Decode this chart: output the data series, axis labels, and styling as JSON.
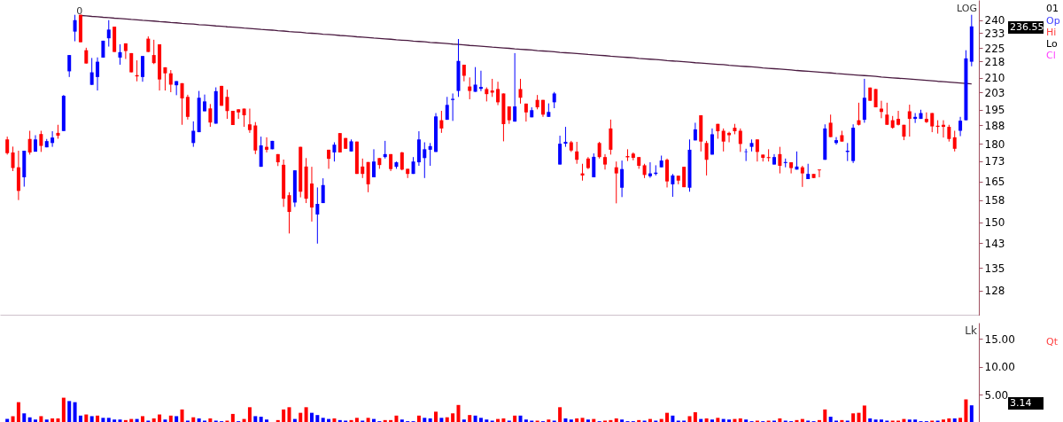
{
  "chart_data": [
    {
      "type": "candlestick",
      "log": true,
      "tick_labels": "y",
      "ylim": [
        120.8,
        251.5
      ],
      "yticks": [
        128,
        135,
        143,
        150,
        158,
        165,
        173,
        180,
        188,
        195,
        203,
        210,
        218,
        225,
        233,
        240
      ],
      "categories": [
        null,
        null,
        null,
        null,
        null,
        null,
        null,
        null,
        null,
        null,
        null,
        null,
        null,
        null,
        null,
        null,
        null,
        null,
        null,
        null,
        null,
        null,
        null,
        null,
        null,
        null,
        null,
        null,
        null,
        null,
        null,
        null,
        null,
        null,
        null,
        null,
        null,
        null,
        null,
        null,
        null,
        null,
        null,
        null,
        null,
        null,
        null,
        null,
        null,
        null,
        null,
        null,
        null,
        null,
        null,
        null,
        null,
        null,
        null,
        null,
        null,
        null,
        null,
        null,
        null,
        null,
        null,
        null,
        null,
        null,
        null,
        null,
        null,
        null,
        null,
        null,
        null,
        null,
        null,
        null,
        null,
        null,
        null,
        null,
        null,
        null,
        null,
        null,
        null,
        null,
        null,
        null,
        null,
        null,
        null,
        null,
        null,
        null,
        null,
        null,
        null,
        null,
        null,
        null,
        null,
        null,
        null,
        null,
        null,
        null,
        null,
        null,
        null,
        null,
        null,
        null,
        null,
        null,
        null,
        null,
        null,
        null,
        null,
        null,
        null,
        null,
        null,
        null,
        null,
        null,
        null,
        null,
        null,
        null,
        null,
        null,
        null,
        null,
        null,
        null,
        null,
        null,
        null,
        null,
        null,
        null,
        null,
        null,
        null,
        null,
        null,
        null,
        null,
        null,
        null,
        null,
        null,
        null,
        null,
        null,
        null,
        null,
        null,
        null,
        null,
        null,
        null,
        null,
        null,
        null,
        null,
        null
      ],
      "ohlc": [
        [
          181.9,
          183.1,
          175.6,
          176.2
        ],
        [
          176.5,
          178.9,
          169.0,
          170.2
        ],
        [
          170.5,
          177.2,
          158.0,
          161.4
        ],
        [
          166.6,
          177.2,
          163.0,
          177.2
        ],
        [
          182.1,
          185.6,
          175.6,
          176.5
        ],
        [
          176.8,
          183.7,
          176.8,
          181.9
        ],
        [
          184.2,
          185.6,
          176.7,
          179.2
        ],
        [
          178.6,
          182.1,
          178.6,
          181.2
        ],
        [
          180.4,
          185.4,
          178.8,
          182.7
        ],
        [
          184.7,
          188.2,
          182.2,
          183.5
        ],
        [
          185.5,
          201.7,
          185.5,
          201.3
        ],
        [
          213.1,
          221.3,
          210.3,
          221.3
        ],
        [
          233.7,
          243.0,
          228.5,
          240.0
        ],
        [
          243.0,
          243.0,
          228.0,
          228.0
        ],
        [
          223.8,
          225.1,
          217.0,
          217.0
        ],
        [
          206.5,
          219.8,
          206.5,
          212.6
        ],
        [
          210.3,
          220.1,
          203.8,
          217.9
        ],
        [
          220.0,
          228.8,
          220.0,
          228.8
        ],
        [
          230.1,
          240.0,
          225.7,
          234.8
        ],
        [
          236.4,
          236.4,
          222.9,
          222.9
        ],
        [
          220.0,
          226.9,
          216.4,
          222.8
        ],
        [
          227.4,
          227.4,
          219.3,
          223.4
        ],
        [
          222.3,
          222.3,
          212.6,
          212.6
        ],
        [
          211.2,
          218.6,
          208.2,
          210.6
        ],
        [
          210.3,
          220.8,
          208.0,
          220.8
        ],
        [
          229.9,
          231.1,
          222.9,
          222.9
        ],
        [
          221.3,
          229.3,
          216.7,
          217.2
        ],
        [
          226.9,
          226.9,
          203.8,
          209.1
        ],
        [
          215.1,
          215.1,
          203.8,
          212.1
        ],
        [
          212.1,
          213.7,
          203.0,
          206.6
        ],
        [
          206.3,
          208.3,
          201.6,
          208.3
        ],
        [
          207.3,
          207.3,
          188.2,
          200.1
        ],
        [
          200.8,
          201.8,
          190.5,
          191.7
        ],
        [
          180.4,
          189.7,
          178.8,
          185.6
        ],
        [
          185.0,
          203.6,
          185.0,
          200.4
        ],
        [
          194.2,
          201.9,
          194.2,
          198.7
        ],
        [
          195.5,
          197.5,
          187.3,
          189.2
        ],
        [
          188.7,
          205.3,
          188.7,
          203.5
        ],
        [
          206.0,
          206.0,
          196.7,
          196.7
        ],
        [
          200.8,
          204.2,
          190.8,
          194.3
        ],
        [
          194.4,
          194.4,
          188.1,
          188.1
        ],
        [
          195.1,
          195.1,
          190.8,
          193.7
        ],
        [
          195.4,
          195.4,
          187.3,
          192.4
        ],
        [
          188.4,
          195.4,
          184.7,
          185.9
        ],
        [
          187.9,
          189.4,
          175.8,
          177.3
        ],
        [
          170.7,
          183.1,
          170.7,
          179.4
        ],
        [
          178.8,
          182.8,
          176.5,
          177.6
        ],
        [
          177.8,
          181.3,
          177.8,
          181.3
        ],
        [
          175.8,
          175.8,
          171.0,
          172.5
        ],
        [
          171.5,
          173.6,
          155.5,
          158.5
        ],
        [
          159.8,
          160.9,
          146.2,
          153.7
        ],
        [
          157.1,
          169.3,
          155.5,
          169.3
        ],
        [
          178.8,
          178.8,
          159.0,
          161.1
        ],
        [
          170.8,
          174.2,
          156.9,
          158.5
        ],
        [
          164.2,
          170.7,
          150.3,
          155.3
        ],
        [
          152.8,
          162.7,
          142.8,
          156.6
        ],
        [
          156.9,
          166.2,
          156.9,
          163.6
        ],
        [
          177.6,
          177.6,
          169.9,
          173.9
        ],
        [
          176.5,
          180.7,
          172.8,
          179.7
        ],
        [
          184.6,
          184.6,
          176.5,
          176.5
        ],
        [
          182.5,
          182.5,
          178.0,
          178.0
        ],
        [
          176.9,
          181.9,
          176.9,
          181.1
        ],
        [
          181.0,
          181.0,
          167.9,
          167.9
        ],
        [
          170.8,
          174.0,
          166.3,
          167.9
        ],
        [
          172.6,
          172.6,
          160.9,
          163.9
        ],
        [
          166.6,
          177.8,
          166.6,
          172.8
        ],
        [
          174.2,
          174.2,
          169.9,
          171.4
        ],
        [
          174.6,
          181.3,
          174.0,
          175.8
        ],
        [
          175.8,
          175.8,
          169.0,
          169.8
        ],
        [
          170.7,
          172.8,
          169.9,
          172.5
        ],
        [
          176.5,
          176.7,
          169.3,
          169.6
        ],
        [
          169.9,
          169.9,
          166.3,
          167.9
        ],
        [
          167.9,
          174.6,
          167.9,
          172.8
        ],
        [
          172.5,
          185.4,
          171.1,
          181.9
        ],
        [
          174.2,
          180.7,
          166.3,
          177.8
        ],
        [
          177.6,
          180.4,
          171.1,
          179.1
        ],
        [
          176.7,
          193.4,
          176.7,
          191.9
        ],
        [
          190.2,
          194.4,
          184.7,
          186.6
        ],
        [
          190.4,
          200.8,
          190.4,
          197.1
        ],
        [
          199.4,
          202.4,
          189.9,
          199.9
        ],
        [
          203.6,
          229.7,
          200.8,
          218.3
        ],
        [
          216.4,
          216.4,
          208.2,
          210.9
        ],
        [
          205.7,
          210.1,
          199.7,
          203.6
        ],
        [
          203.2,
          215.2,
          203.2,
          206.6
        ],
        [
          204.6,
          213.4,
          203.5,
          205.5
        ],
        [
          204.5,
          205.3,
          198.7,
          202.1
        ],
        [
          203.8,
          209.4,
          200.8,
          202.8
        ],
        [
          204.5,
          208.0,
          197.0,
          198.3
        ],
        [
          202.4,
          202.4,
          181.1,
          188.5
        ],
        [
          196.4,
          196.4,
          188.6,
          190.2
        ],
        [
          189.6,
          222.3,
          189.6,
          196.4
        ],
        [
          204.5,
          209.4,
          197.7,
          200.4
        ],
        [
          197.7,
          197.7,
          189.6,
          193.7
        ],
        [
          191.5,
          196.0,
          191.5,
          194.7
        ],
        [
          199.4,
          201.7,
          195.1,
          196.0
        ],
        [
          199.4,
          199.4,
          191.7,
          192.7
        ],
        [
          191.7,
          197.8,
          191.7,
          193.9
        ],
        [
          198.3,
          203.1,
          195.6,
          202.4
        ],
        [
          171.6,
          183.5,
          171.6,
          180.1
        ],
        [
          180.1,
          187.3,
          178.8,
          180.9
        ],
        [
          180.7,
          181.3,
          176.7,
          177.3
        ],
        [
          176.9,
          180.9,
          171.9,
          173.5
        ],
        [
          168.1,
          171.9,
          165.3,
          167.3
        ],
        [
          174.0,
          174.6,
          169.8,
          170.2
        ],
        [
          166.6,
          176.1,
          166.6,
          174.7
        ],
        [
          180.4,
          180.9,
          174.0,
          174.6
        ],
        [
          174.6,
          175.8,
          169.6,
          171.6
        ],
        [
          186.6,
          190.5,
          175.6,
          177.6
        ],
        [
          170.5,
          172.8,
          156.8,
          168.1
        ],
        [
          162.6,
          173.2,
          159.1,
          169.8
        ],
        [
          175.0,
          177.8,
          173.0,
          174.5
        ],
        [
          176.0,
          176.5,
          173.3,
          174.3
        ],
        [
          174.6,
          174.6,
          169.9,
          171.1
        ],
        [
          171.3,
          171.9,
          166.3,
          167.5
        ],
        [
          167.0,
          172.5,
          166.4,
          168.1
        ],
        [
          167.9,
          171.3,
          167.3,
          168.4
        ],
        [
          170.5,
          175.2,
          170.5,
          173.2
        ],
        [
          173.5,
          174.0,
          162.7,
          165.0
        ],
        [
          163.9,
          167.9,
          159.2,
          167.3
        ],
        [
          167.2,
          167.2,
          163.9,
          165.3
        ],
        [
          170.7,
          170.7,
          162.8,
          162.8
        ],
        [
          162.6,
          181.9,
          161.1,
          177.6
        ],
        [
          181.5,
          189.1,
          181.5,
          186.2
        ],
        [
          192.4,
          192.4,
          176.9,
          181.0
        ],
        [
          180.4,
          181.3,
          167.3,
          173.5
        ],
        [
          175.6,
          186.6,
          175.6,
          184.1
        ],
        [
          188.6,
          188.6,
          182.2,
          185.4
        ],
        [
          185.6,
          186.6,
          176.9,
          181.0
        ],
        [
          184.7,
          185.2,
          180.7,
          183.7
        ],
        [
          186.9,
          188.6,
          184.1,
          185.4
        ],
        [
          185.6,
          186.6,
          176.7,
          180.0
        ],
        [
          176.7,
          178.0,
          173.0,
          176.9
        ],
        [
          178.8,
          181.9,
          176.9,
          180.4
        ],
        [
          181.9,
          181.9,
          172.8,
          176.7
        ],
        [
          175.6,
          175.6,
          172.8,
          174.3
        ],
        [
          174.6,
          177.8,
          172.8,
          174.2
        ],
        [
          171.6,
          175.8,
          171.6,
          174.6
        ],
        [
          175.8,
          178.8,
          168.1,
          171.1
        ],
        [
          172.2,
          174.0,
          170.5,
          172.6
        ],
        [
          172.5,
          172.5,
          168.1,
          170.2
        ],
        [
          169.6,
          176.9,
          169.6,
          170.8
        ],
        [
          170.5,
          171.1,
          162.9,
          168.1
        ],
        [
          165.9,
          171.9,
          165.9,
          167.9
        ],
        [
          167.9,
          167.9,
          166.3,
          166.3
        ],
        [
          169.6,
          169.6,
          166.6,
          169.3
        ],
        [
          173.5,
          188.4,
          173.5,
          186.6
        ],
        [
          189.1,
          192.7,
          182.9,
          182.9
        ],
        [
          180.4,
          182.9,
          179.7,
          181.6
        ],
        [
          183.7,
          185.6,
          181.0,
          181.0
        ],
        [
          176.7,
          180.4,
          173.0,
          177.2
        ],
        [
          173.0,
          188.4,
          172.2,
          186.9
        ],
        [
          190.2,
          198.1,
          187.9,
          188.2
        ],
        [
          190.4,
          209.4,
          189.1,
          200.4
        ],
        [
          205.2,
          205.2,
          199.0,
          199.0
        ],
        [
          204.5,
          204.5,
          196.0,
          196.0
        ],
        [
          195.4,
          199.0,
          191.1,
          193.9
        ],
        [
          192.7,
          198.1,
          188.2,
          188.2
        ],
        [
          190.2,
          192.1,
          186.5,
          186.9
        ],
        [
          190.8,
          194.4,
          187.9,
          188.2
        ],
        [
          188.2,
          188.2,
          181.6,
          183.1
        ],
        [
          194.2,
          197.2,
          183.1,
          190.8
        ],
        [
          190.8,
          193.4,
          189.0,
          191.7
        ],
        [
          190.8,
          194.9,
          190.8,
          193.4
        ],
        [
          190.8,
          193.7,
          189.0,
          189.4
        ],
        [
          193.4,
          193.4,
          185.0,
          187.5
        ],
        [
          187.8,
          190.2,
          184.4,
          187.3
        ],
        [
          188.2,
          190.2,
          182.7,
          187.3
        ],
        [
          187.3,
          188.2,
          181.0,
          182.1
        ],
        [
          182.8,
          185.6,
          176.9,
          178.0
        ],
        [
          185.6,
          191.7,
          183.3,
          190.0
        ],
        [
          190.2,
          223.8,
          190.2,
          219.6
        ],
        [
          217.9,
          243.0,
          215.6,
          236.55
        ]
      ],
      "colors": [
        "#ff0000",
        "#ff0000",
        "#ff0000",
        "#0000ff",
        "#ff0000",
        "#0000ff",
        "#ff0000",
        "#0000ff",
        "#0000ff",
        "#ff0000",
        "#0000ff",
        "#0000ff",
        "#0000ff",
        "#ff0000",
        "#ff0000",
        "#0000ff",
        "#0000ff",
        "#0000ff",
        "#0000ff",
        "#ff0000",
        "#0000ff",
        "#ff0000",
        "#ff0000",
        "#ff0000",
        "#0000ff",
        "#ff0000",
        "#ff0000",
        "#ff0000",
        "#ff0000",
        "#ff0000",
        "#0000ff",
        "#ff0000",
        "#ff0000",
        "#0000ff",
        "#0000ff",
        "#0000ff",
        "#ff0000",
        "#0000ff",
        "#ff0000",
        "#ff0000",
        "#ff0000",
        "#ff0000",
        "#ff0000",
        "#ff0000",
        "#ff0000",
        "#0000ff",
        "#ff0000",
        "#0000ff",
        "#ff0000",
        "#ff0000",
        "#ff0000",
        "#0000ff",
        "#ff0000",
        "#ff0000",
        "#ff0000",
        "#0000ff",
        "#0000ff",
        "#ff0000",
        "#0000ff",
        "#ff0000",
        "#ff0000",
        "#0000ff",
        "#ff0000",
        "#ff0000",
        "#ff0000",
        "#0000ff",
        "#ff0000",
        "#0000ff",
        "#ff0000",
        "#0000ff",
        "#ff0000",
        "#ff0000",
        "#0000ff",
        "#0000ff",
        "#0000ff",
        "#0000ff",
        "#0000ff",
        "#ff0000",
        "#0000ff",
        "#0000ff",
        "#0000ff",
        "#ff0000",
        "#ff0000",
        "#0000ff",
        "#0000ff",
        "#ff0000",
        "#ff0000",
        "#ff0000",
        "#ff0000",
        "#ff0000",
        "#0000ff",
        "#ff0000",
        "#ff0000",
        "#0000ff",
        "#ff0000",
        "#ff0000",
        "#0000ff",
        "#0000ff",
        "#0000ff",
        "#0000ff",
        "#ff0000",
        "#ff0000",
        "#ff0000",
        "#ff0000",
        "#0000ff",
        "#ff0000",
        "#ff0000",
        "#ff0000",
        "#ff0000",
        "#0000ff",
        "#ff0000",
        "#ff0000",
        "#ff0000",
        "#ff0000",
        "#0000ff",
        "#0000ff",
        "#0000ff",
        "#ff0000",
        "#0000ff",
        "#ff0000",
        "#ff0000",
        "#0000ff",
        "#0000ff",
        "#ff0000",
        "#ff0000",
        "#0000ff",
        "#ff0000",
        "#ff0000",
        "#ff0000",
        "#ff0000",
        "#ff0000",
        "#0000ff",
        "#0000ff",
        "#ff0000",
        "#ff0000",
        "#ff0000",
        "#0000ff",
        "#ff0000",
        "#0000ff",
        "#ff0000",
        "#0000ff",
        "#ff0000",
        "#0000ff",
        "#ff0000",
        "#ff0000",
        "#0000ff",
        "#ff0000",
        "#0000ff",
        "#ff0000",
        "#0000ff",
        "#0000ff",
        "#ff0000",
        "#0000ff",
        "#ff0000",
        "#ff0000",
        "#ff0000",
        "#ff0000",
        "#ff0000",
        "#ff0000",
        "#ff0000",
        "#ff0000",
        "#0000ff",
        "#0000ff",
        "#ff0000",
        "#ff0000",
        "#ff0000",
        "#ff0000",
        "#ff0000",
        "#ff0000",
        "#0000ff",
        "#0000ff",
        "#0000ff"
      ],
      "series": [
        {
          "type": "line",
          "color": "#4a1a40",
          "values": [
            null,
            null,
            null,
            null,
            null,
            null,
            null,
            null,
            null,
            null,
            null,
            null,
            null,
            242.6,
            242.4,
            242.1,
            241.9,
            241.6,
            241.4,
            241.1,
            240.9,
            240.7,
            240.4,
            240.2,
            239.9,
            239.7,
            239.5,
            239.2,
            239.0,
            238.7,
            238.5,
            238.2,
            238.0,
            237.8,
            237.5,
            237.3,
            237.1,
            236.8,
            236.6,
            236.3,
            236.1,
            235.9,
            235.6,
            235.4,
            235.2,
            234.9,
            234.7,
            234.5,
            234.2,
            234.0,
            233.7,
            233.5,
            233.3,
            233.0,
            232.8,
            232.6,
            232.3,
            232.1,
            231.9,
            231.6,
            231.4,
            231.2,
            230.9,
            230.7,
            230.5,
            230.2,
            230.0,
            229.8,
            229.6,
            229.3,
            229.1,
            228.9,
            228.6,
            228.4,
            228.2,
            227.9,
            227.7,
            227.5,
            227.3,
            227.0,
            226.8,
            226.6,
            226.3,
            226.1,
            225.9,
            225.7,
            225.4,
            225.2,
            225.0,
            224.8,
            224.5,
            224.3,
            224.1,
            223.9,
            223.6,
            223.4,
            223.2,
            223.0,
            222.7,
            222.5,
            222.3,
            222.1,
            221.9,
            221.6,
            221.4,
            221.2,
            221.0,
            220.7,
            220.5,
            220.3,
            220.1,
            219.9,
            219.6,
            219.4,
            219.2,
            219.0,
            218.8,
            218.5,
            218.3,
            218.1,
            217.9,
            217.7,
            217.4,
            217.2,
            217.0,
            216.8,
            216.6,
            216.4,
            216.1,
            215.9,
            215.7,
            215.5,
            215.3,
            215.1,
            214.8,
            214.6,
            214.4,
            214.2,
            214.0,
            213.8,
            213.5,
            213.3,
            213.1,
            212.9,
            212.7,
            212.5,
            212.3,
            212.0,
            211.8,
            211.6,
            211.4,
            211.2,
            211.0,
            210.8,
            210.6,
            210.3,
            210.1,
            209.9,
            209.7,
            209.5,
            209.3,
            209.1,
            208.9,
            208.7,
            208.5,
            208.2,
            208.0,
            207.8,
            207.6,
            207.4,
            207.2,
            207.0
          ]
        }
      ],
      "annotations": [
        "0",
        "LOG",
        "236.55",
        "01",
        "Op",
        "Hi",
        "Lo",
        "Cl"
      ]
    },
    {
      "type": "bar",
      "tick_labels": "y",
      "ylabel": "Lk",
      "ylim": [
        0,
        17.9
      ],
      "yticks": [
        {
          "value": 5,
          "label": "5.00"
        },
        {
          "value": 10,
          "label": "10.00"
        },
        {
          "value": 15,
          "label": "15.00"
        }
      ],
      "categories": [
        null,
        null,
        null,
        null,
        null,
        null,
        null,
        null,
        null,
        null,
        null,
        null,
        null,
        null,
        null,
        null,
        null,
        null,
        null,
        null,
        null,
        null,
        null,
        null,
        null,
        null,
        null,
        null,
        null,
        null,
        null,
        null,
        null,
        null,
        null,
        null,
        null,
        null,
        null,
        null,
        null,
        null,
        null,
        null,
        null,
        null,
        null,
        null,
        null,
        null,
        null,
        null,
        null,
        null,
        null,
        null,
        null,
        null,
        null,
        null,
        null,
        null,
        null,
        null,
        null,
        null,
        null,
        null,
        null,
        null,
        null,
        null,
        null,
        null,
        null,
        null,
        null,
        null,
        null,
        null,
        null,
        null,
        null,
        null,
        null,
        null,
        null,
        null,
        null,
        null,
        null,
        null,
        null,
        null,
        null,
        null,
        null,
        null,
        null,
        null,
        null,
        null,
        null,
        null,
        null,
        null,
        null,
        null,
        null,
        null,
        null,
        null,
        null,
        null,
        null,
        null,
        null,
        null,
        null,
        null,
        null,
        null,
        null,
        null,
        null,
        null,
        null,
        null,
        null,
        null,
        null,
        null,
        null,
        null,
        null,
        null,
        null,
        null,
        null,
        null,
        null,
        null,
        null,
        null,
        null,
        null,
        null,
        null,
        null,
        null,
        null,
        null,
        null,
        null,
        null,
        null,
        null,
        null,
        null,
        null,
        null,
        null,
        null,
        null,
        null,
        null,
        null,
        null,
        null,
        null,
        null,
        null
      ],
      "values": [
        0.7,
        1.2,
        3.7,
        1.7,
        1.0,
        0.6,
        1.2,
        0.6,
        0.8,
        0.8,
        4.5,
        3.9,
        3.7,
        1.3,
        1.5,
        1.2,
        1.3,
        0.9,
        0.9,
        0.6,
        0.6,
        0.5,
        0.7,
        0.7,
        1.2,
        0.4,
        0.8,
        1.5,
        0.6,
        1.3,
        1.2,
        2.4,
        0.4,
        1.0,
        0.8,
        0.4,
        0.8,
        0.4,
        0.3,
        0.4,
        1.6,
        0.3,
        0.7,
        2.8,
        1.2,
        1.1,
        0.6,
        null,
        0.5,
        2.4,
        2.8,
        0.7,
        1.8,
        2.8,
        1.8,
        1.4,
        0.9,
        0.7,
        0.8,
        0.5,
        0.4,
        0.5,
        0.9,
        0.4,
        0.9,
        0.7,
        0.3,
        0.5,
        0.5,
        1.3,
        0.6,
        0.3,
        0.3,
        1.3,
        0.9,
        0.8,
        2.0,
        0.9,
        1.0,
        1.7,
        3.2,
        0.6,
        1.4,
        1.3,
        0.9,
        0.6,
        0.4,
        0.7,
        0.8,
        0.4,
        1.3,
        1.3,
        0.6,
        0.4,
        0.4,
        0.3,
        0.6,
        0.4,
        2.8,
        0.8,
        0.6,
        0.8,
        0.9,
        0.6,
        0.7,
        0.3,
        0.4,
        0.5,
        0.8,
        0.6,
        0.3,
        0.3,
        0.5,
        0.4,
        0.7,
        0.4,
        0.7,
        1.8,
        1.3,
        0.4,
        0.4,
        1.2,
        1.9,
        0.7,
        0.8,
        0.6,
        0.9,
        0.7,
        0.6,
        0.7,
        0.8,
        0.6,
        0.3,
        0.4,
        0.3,
        0.4,
        0.4,
        0.8,
        0.4,
        0.3,
        0.5,
        0.7,
        0.4,
        0.3,
        0.5,
        2.4,
        1.1,
        0.4,
        0.5,
        0.4,
        1.7,
        1.8,
        3.1,
        0.8,
        0.6,
        0.6,
        0.4,
        0.4,
        0.4,
        0.7,
        0.6,
        0.6,
        0.3,
        0.3,
        0.4,
        0.4,
        0.6,
        0.8,
        0.8,
        0.9,
        4.2,
        3.14
      ],
      "colors": [
        "#0000ff",
        "#ff0000",
        "#ff0000",
        "#0000ff",
        "#0000ff",
        "#0000ff",
        "#ff0000",
        "#0000ff",
        "#ff0000",
        "#ff0000",
        "#ff0000",
        "#0000ff",
        "#0000ff",
        "#0000ff",
        "#ff0000",
        "#0000ff",
        "#ff0000",
        "#0000ff",
        "#0000ff",
        "#0000ff",
        "#0000ff",
        "#ff0000",
        "#ff0000",
        "#0000ff",
        "#ff0000",
        "#0000ff",
        "#ff0000",
        "#ff0000",
        "#0000ff",
        "#ff0000",
        "#0000ff",
        "#ff0000",
        "#0000ff",
        "#ff0000",
        "#0000ff",
        "#0000ff",
        "#ff0000",
        "#0000ff",
        "#0000ff",
        "#ff0000",
        "#ff0000",
        "#0000ff",
        "#ff0000",
        "#ff0000",
        "#0000ff",
        "#0000ff",
        "#0000ff",
        "#0000ff",
        "#ff0000",
        "#ff0000",
        "#ff0000",
        "#0000ff",
        "#ff0000",
        "#ff0000",
        "#0000ff",
        "#0000ff",
        "#0000ff",
        "#0000ff",
        "#ff0000",
        "#0000ff",
        "#0000ff",
        "#ff0000",
        "#ff0000",
        "#0000ff",
        "#ff0000",
        "#0000ff",
        "#0000ff",
        "#ff0000",
        "#ff0000",
        "#ff0000",
        "#0000ff",
        "#0000ff",
        "#0000ff",
        "#ff0000",
        "#0000ff",
        "#0000ff",
        "#ff0000",
        "#0000ff",
        "#ff0000",
        "#ff0000",
        "#ff0000",
        "#0000ff",
        "#ff0000",
        "#0000ff",
        "#0000ff",
        "#0000ff",
        "#0000ff",
        "#ff0000",
        "#ff0000",
        "#0000ff",
        "#ff0000",
        "#0000ff",
        "#0000ff",
        "#0000ff",
        "#ff0000",
        "#0000ff",
        "#ff0000",
        "#0000ff",
        "#ff0000",
        "#0000ff",
        "#0000ff",
        "#ff0000",
        "#ff0000",
        "#0000ff",
        "#ff0000",
        "#0000ff",
        "#ff0000",
        "#ff0000",
        "#ff0000",
        "#0000ff",
        "#0000ff",
        "#0000ff",
        "#ff0000",
        "#0000ff",
        "#ff0000",
        "#0000ff",
        "#ff0000",
        "#ff0000",
        "#0000ff",
        "#0000ff",
        "#0000ff",
        "#ff0000",
        "#ff0000",
        "#0000ff",
        "#ff0000",
        "#0000ff",
        "#ff0000",
        "#0000ff",
        "#0000ff",
        "#ff0000",
        "#ff0000",
        "#0000ff",
        "#0000ff",
        "#ff0000",
        "#0000ff",
        "#ff0000",
        "#0000ff",
        "#ff0000",
        "#0000ff",
        "#0000ff",
        "#ff0000",
        "#ff0000",
        "#0000ff",
        "#0000ff",
        "#ff0000",
        "#ff0000",
        "#0000ff",
        "#0000ff",
        "#ff0000",
        "#0000ff",
        "#ff0000",
        "#ff0000",
        "#ff0000",
        "#0000ff",
        "#0000ff",
        "#0000ff",
        "#0000ff",
        "#ff0000",
        "#ff0000",
        "#ff0000",
        "#0000ff",
        "#0000ff",
        "#0000ff",
        "#0000ff",
        "#ff0000",
        "#0000ff",
        "#ff0000",
        "#ff0000",
        "#0000ff",
        "#ff0000",
        "#ff0000",
        "#0000ff"
      ],
      "annotations": [
        "3.14",
        "Qt"
      ]
    }
  ]
}
